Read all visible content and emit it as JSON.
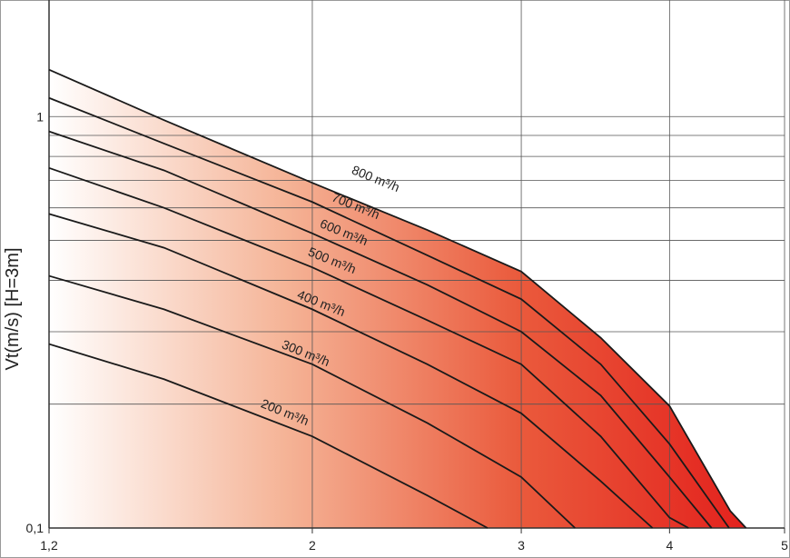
{
  "chart_data": {
    "type": "line",
    "y_label": "Vt(m/s) [H=3m]",
    "xlim": [
      1.2,
      5
    ],
    "ylim": [
      0.1,
      1.92
    ],
    "log_x": true,
    "log_y": true,
    "grid": true,
    "xticks": [
      {
        "value": 1.2,
        "label": "1,2"
      },
      2,
      3,
      4,
      5
    ],
    "yticks": [
      {
        "value": 0.1,
        "label": "0,1"
      },
      1
    ],
    "minor_yticks": [
      0.2,
      0.3,
      0.4,
      0.5,
      0.6,
      0.7,
      0.8,
      0.9
    ],
    "fill_colors": [
      "#ffffff",
      "#f5b497",
      "#ea5a3c",
      "#e3201c"
    ],
    "series": [
      {
        "name": "200 m³/h",
        "color": "#1a1a1a",
        "x": [
          1.2,
          1.5,
          2,
          2.5,
          2.81
        ],
        "values": [
          0.28,
          0.23,
          0.167,
          0.12,
          0.1
        ]
      },
      {
        "name": "300 m³/h",
        "color": "#1a1a1a",
        "x": [
          1.2,
          1.5,
          2,
          2.5,
          3,
          3.33
        ],
        "values": [
          0.41,
          0.34,
          0.25,
          0.18,
          0.133,
          0.1
        ]
      },
      {
        "name": "400 m³/h",
        "color": "#1a1a1a",
        "x": [
          1.2,
          1.5,
          2,
          2.5,
          3,
          3.5,
          3.87
        ],
        "values": [
          0.58,
          0.48,
          0.34,
          0.25,
          0.19,
          0.13,
          0.1
        ]
      },
      {
        "name": "500 m³/h",
        "color": "#1a1a1a",
        "x": [
          1.2,
          1.5,
          2,
          2.5,
          3,
          3.5,
          4,
          4.15
        ],
        "values": [
          0.75,
          0.6,
          0.43,
          0.32,
          0.25,
          0.167,
          0.106,
          0.1
        ]
      },
      {
        "name": "600 m³/h",
        "color": "#1a1a1a",
        "x": [
          1.2,
          1.5,
          2,
          2.5,
          3,
          3.5,
          4,
          4.34
        ],
        "values": [
          0.92,
          0.74,
          0.52,
          0.39,
          0.3,
          0.21,
          0.133,
          0.1
        ]
      },
      {
        "name": "700 m³/h",
        "color": "#1a1a1a",
        "x": [
          1.2,
          1.5,
          2,
          2.5,
          3,
          3.5,
          4,
          4.49
        ],
        "values": [
          1.11,
          0.86,
          0.62,
          0.46,
          0.36,
          0.25,
          0.16,
          0.1
        ]
      },
      {
        "name": "800 m³/h",
        "color": "#1a1a1a",
        "x": [
          1.2,
          1.5,
          2,
          2.5,
          3,
          3.5,
          4,
          4.5,
          4.64
        ],
        "values": [
          1.3,
          0.98,
          0.69,
          0.53,
          0.42,
          0.29,
          0.198,
          0.11,
          0.1
        ]
      }
    ]
  }
}
